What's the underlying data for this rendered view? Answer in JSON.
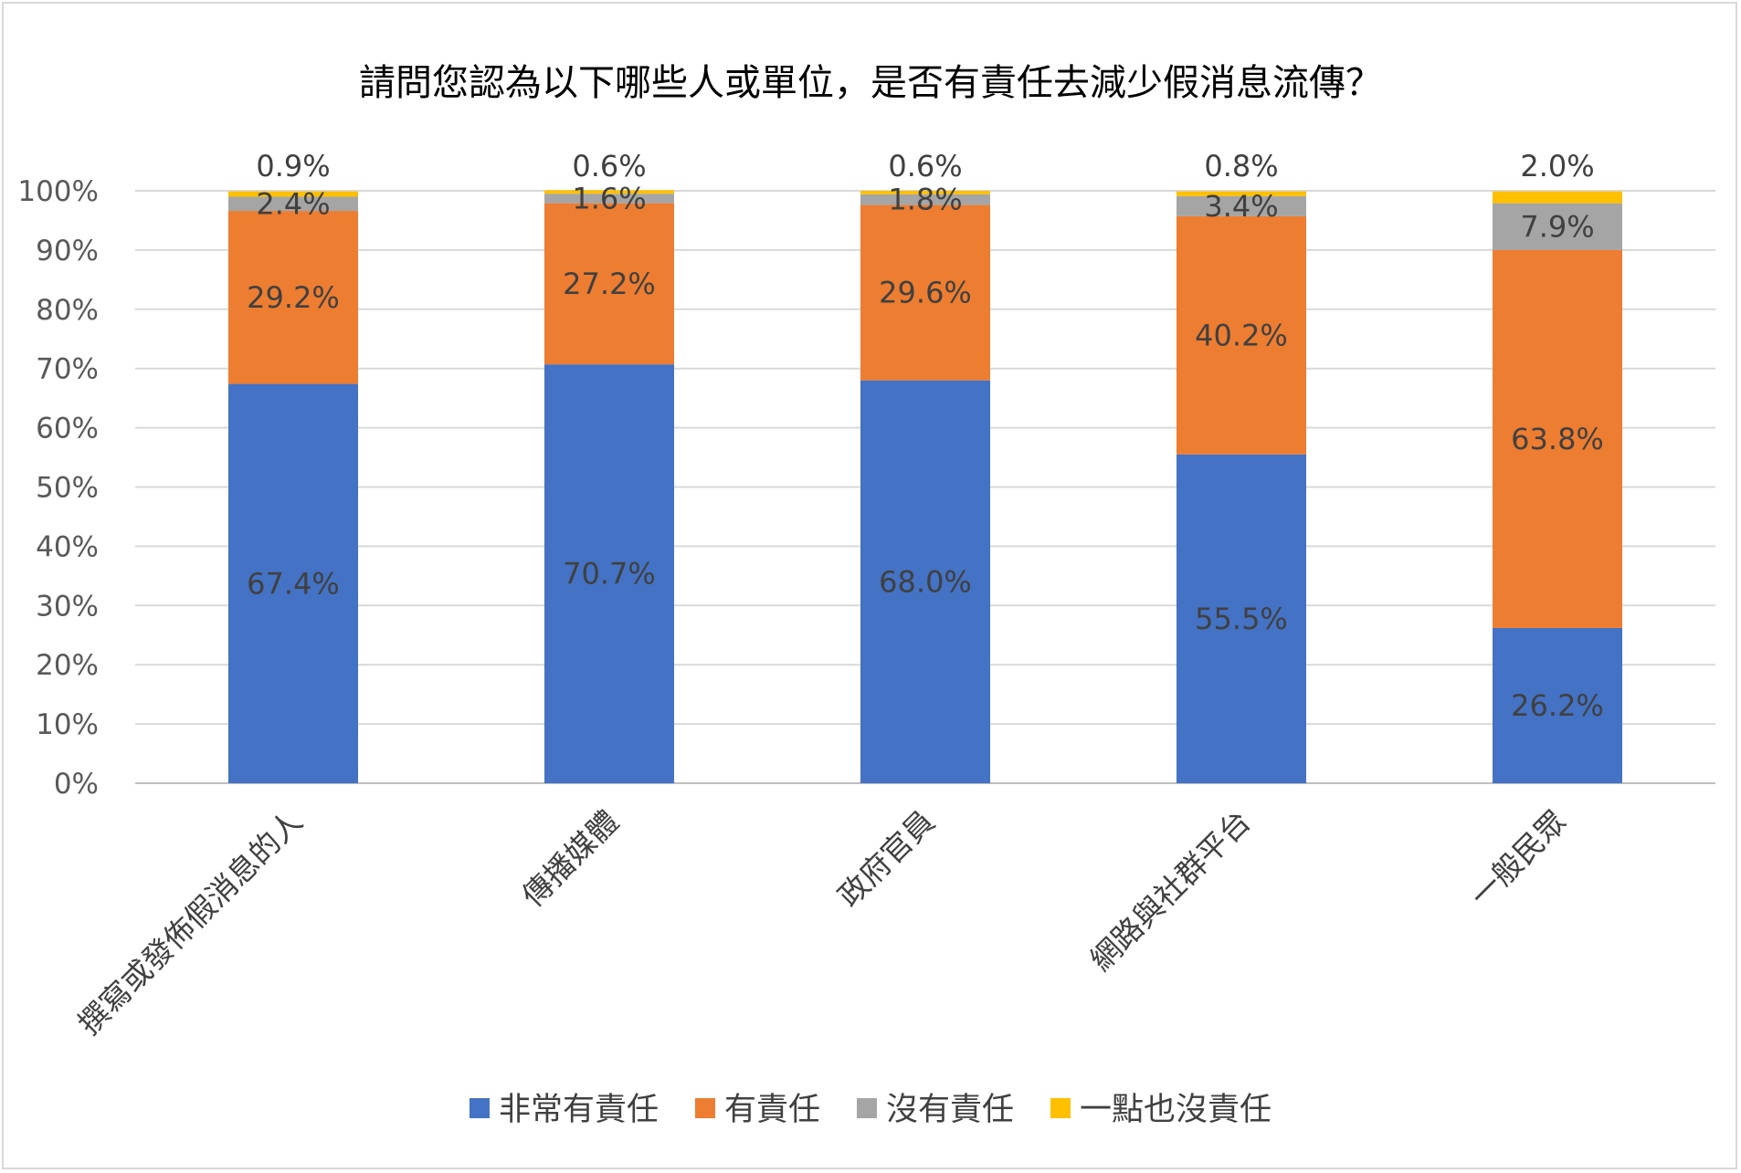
{
  "chart_data": {
    "type": "bar",
    "stacked": true,
    "percent": true,
    "title": "請問您認為以下哪些人或單位，是否有責任去減少假消息流傳？",
    "categories": [
      "撰寫或發佈假消息的人",
      "傳播媒體",
      "政府官員",
      "網路與社群平台",
      "一般民眾"
    ],
    "series": [
      {
        "name": "非常有責任",
        "color": "#4472C4",
        "values": [
          67.4,
          70.7,
          68.0,
          55.5,
          26.2
        ],
        "labels": [
          "67.4%",
          "70.7%",
          "68.0%",
          "55.5%",
          "26.2%"
        ]
      },
      {
        "name": "有責任",
        "color": "#ED7D31",
        "values": [
          29.2,
          27.2,
          29.6,
          40.2,
          63.8
        ],
        "labels": [
          "29.2%",
          "27.2%",
          "29.6%",
          "40.2%",
          "63.8%"
        ]
      },
      {
        "name": "沒有責任",
        "color": "#A5A5A5",
        "values": [
          2.4,
          1.6,
          1.8,
          3.4,
          7.9
        ],
        "labels": [
          "2.4%",
          "1.6%",
          "1.8%",
          "3.4%",
          "7.9%"
        ]
      },
      {
        "name": "一點也沒責任",
        "color": "#FFC000",
        "values": [
          0.9,
          0.6,
          0.6,
          0.8,
          2.0
        ],
        "labels": [
          "0.9%",
          "0.6%",
          "0.6%",
          "0.8%",
          "2.0%"
        ]
      }
    ],
    "yticks": [
      "0%",
      "10%",
      "20%",
      "30%",
      "40%",
      "50%",
      "60%",
      "70%",
      "80%",
      "90%",
      "100%"
    ],
    "ylim": [
      0,
      100
    ],
    "grid": true,
    "legend": "bottom",
    "xlabel": "",
    "ylabel": ""
  }
}
